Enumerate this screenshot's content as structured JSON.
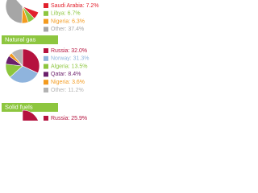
{
  "chart_data": [
    {
      "type": "pie",
      "values": [
        7.2,
        6.7,
        6.3,
        37.4
      ],
      "value_labels": [
        "Saudi Arabia: 7.2%",
        "Libya: 6.7%",
        "Nigeria: 6.3%",
        "Other: 37.4%"
      ],
      "colors": [
        "#e2202c",
        "#8dc63f",
        "#f39a1e",
        "#a6a6a6"
      ]
    },
    {
      "type": "pie",
      "title": "Natural gas",
      "values": [
        32.0,
        31.3,
        13.5,
        8.4,
        3.6,
        11.2
      ],
      "value_labels": [
        "Russia: 32.0%",
        "Norway: 31.3%",
        "Algeria: 13.5%",
        "Qatar: 8.4%",
        "Nigeria: 3.6%",
        "Other: 11.2%"
      ],
      "colors": [
        "#b5123e",
        "#8fb4dd",
        "#8dc63f",
        "#6b1f6b",
        "#f39a1e",
        "#b3b3b3"
      ]
    },
    {
      "type": "pie",
      "title": "Solid fuels",
      "values": [
        25.9
      ],
      "value_labels": [
        "Russia: 25.9%"
      ],
      "colors": [
        "#b5123e"
      ]
    }
  ]
}
